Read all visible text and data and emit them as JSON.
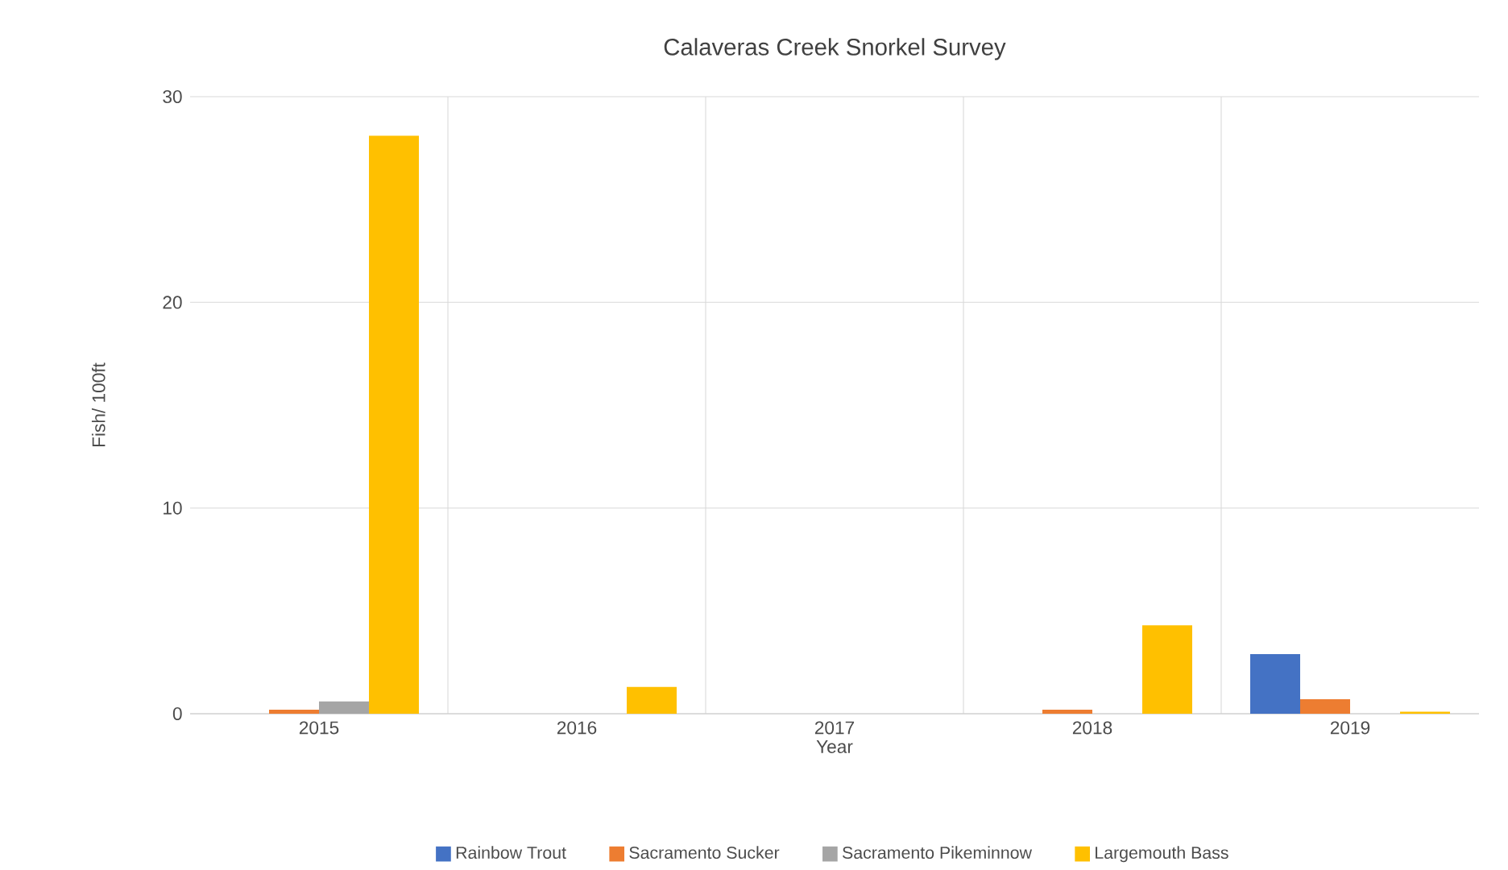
{
  "chart_data": {
    "type": "bar",
    "title": "Calaveras Creek Snorkel Survey",
    "xlabel": "Year",
    "ylabel": "Fish/ 100ft",
    "categories": [
      "2015",
      "2016",
      "2017",
      "2018",
      "2019"
    ],
    "series": [
      {
        "name": "Rainbow Trout",
        "color": "#4472c4",
        "values": [
          0,
          0,
          0,
          0,
          2.9
        ]
      },
      {
        "name": "Sacramento Sucker",
        "color": "#ed7d31",
        "values": [
          0.2,
          0,
          0,
          0.2,
          0.7
        ]
      },
      {
        "name": "Sacramento Pikeminnow",
        "color": "#a5a5a5",
        "values": [
          0.6,
          0,
          0,
          0,
          0
        ]
      },
      {
        "name": "Largemouth Bass",
        "color": "#ffc000",
        "values": [
          28.1,
          1.3,
          0,
          4.3,
          0.1
        ]
      }
    ],
    "ylim": [
      0,
      30
    ],
    "yticks": [
      0,
      10,
      20,
      30
    ],
    "grid": true,
    "legend": "bottom"
  }
}
